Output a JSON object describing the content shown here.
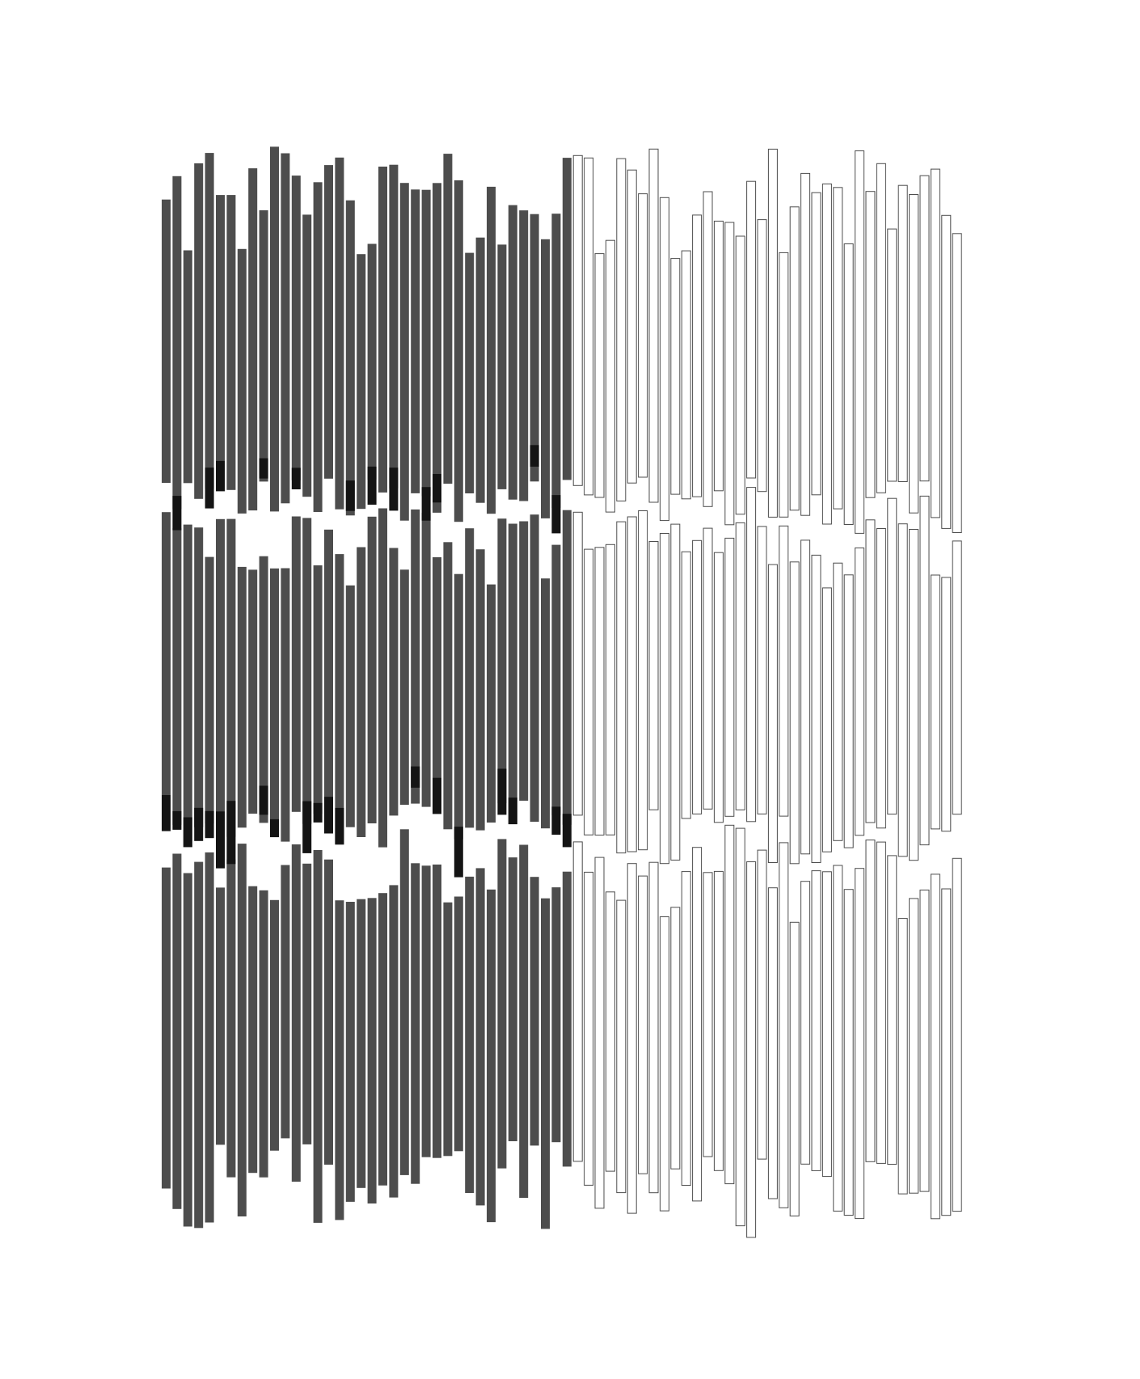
{
  "artwork": {
    "background": "#ffffff",
    "dark_fill": "#4d4d4d",
    "overlap_fill": "#141414",
    "outline_stroke": "#4d4d4d",
    "outline_fill": "#ffffff"
  }
}
